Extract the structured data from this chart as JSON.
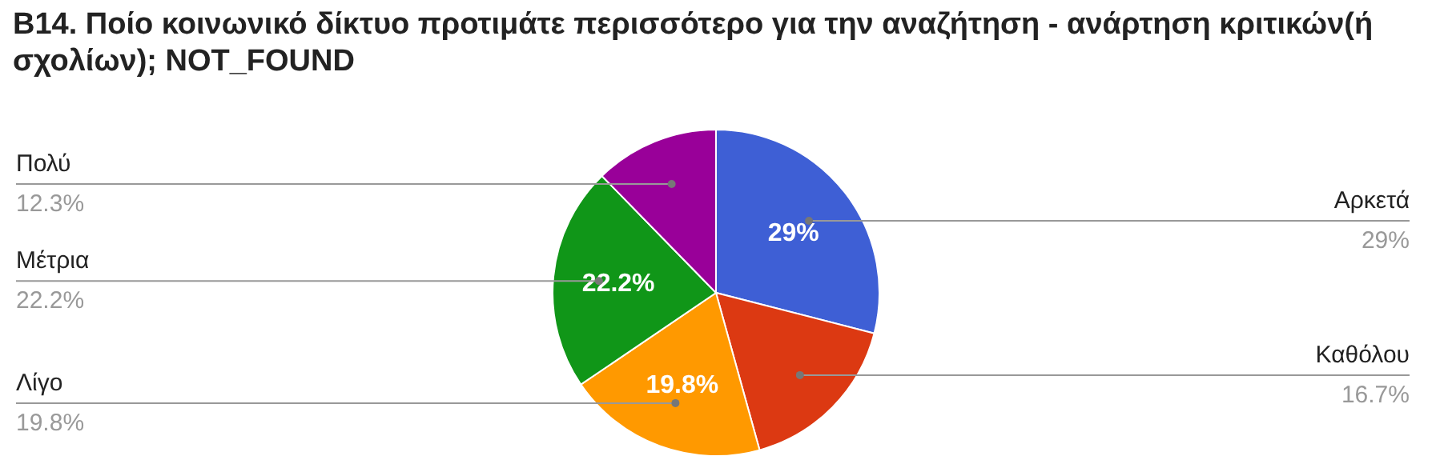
{
  "chart_data": {
    "type": "pie",
    "title": "Β14. Ποίο κοινωνικό δίκτυο προτιμάτε περισσότερο για την αναζήτηση - ανάρτηση κριτικών(ή σχολίων); NOT_FOUND",
    "categories": [
      "Αρκετά",
      "Καθόλου",
      "Λίγο",
      "Μέτρια",
      "Πολύ"
    ],
    "values": [
      29,
      16.7,
      19.8,
      22.2,
      12.3
    ],
    "colors": [
      "#3e5fd5",
      "#dc3912",
      "#ff9900",
      "#109618",
      "#990099"
    ],
    "value_labels": [
      "29%",
      null,
      "19.8%",
      "22.2%",
      null
    ],
    "annotations": [
      "29%",
      "16.7%",
      "19.8%",
      "22.2%",
      "12.3%"
    ]
  }
}
